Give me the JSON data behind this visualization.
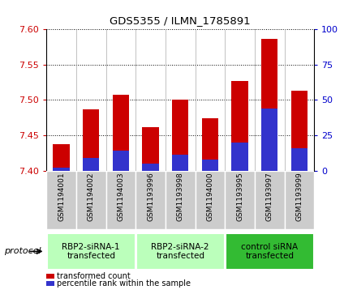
{
  "title": "GDS5355 / ILMN_1785891",
  "samples": [
    "GSM1194001",
    "GSM1194002",
    "GSM1194003",
    "GSM1193996",
    "GSM1193998",
    "GSM1194000",
    "GSM1193995",
    "GSM1193997",
    "GSM1193999"
  ],
  "red_values": [
    7.437,
    7.487,
    7.507,
    7.462,
    7.501,
    7.474,
    7.527,
    7.587,
    7.513
  ],
  "blue_values": [
    2,
    9,
    14,
    5,
    11,
    8,
    20,
    44,
    16
  ],
  "ylim_left": [
    7.4,
    7.6
  ],
  "ylim_right": [
    0,
    100
  ],
  "yticks_left": [
    7.4,
    7.45,
    7.5,
    7.55,
    7.6
  ],
  "yticks_right": [
    0,
    25,
    50,
    75,
    100
  ],
  "red_color": "#cc0000",
  "blue_color": "#3333cc",
  "bar_width": 0.55,
  "proto_labels": [
    "RBP2-siRNA-1\ntransfected",
    "RBP2-siRNA-2\ntransfected",
    "control siRNA\ntransfected"
  ],
  "proto_colors_light": "#bbffbb",
  "proto_color_dark": "#33bb33",
  "protocol_label": "protocol",
  "legend_items": [
    {
      "color": "#cc0000",
      "label": "transformed count"
    },
    {
      "color": "#3333cc",
      "label": "percentile rank within the sample"
    }
  ],
  "tick_color_left": "#cc0000",
  "tick_color_right": "#0000cc",
  "sample_area_color": "#cccccc",
  "plot_bg": "#ffffff",
  "fig_bg": "#ffffff"
}
